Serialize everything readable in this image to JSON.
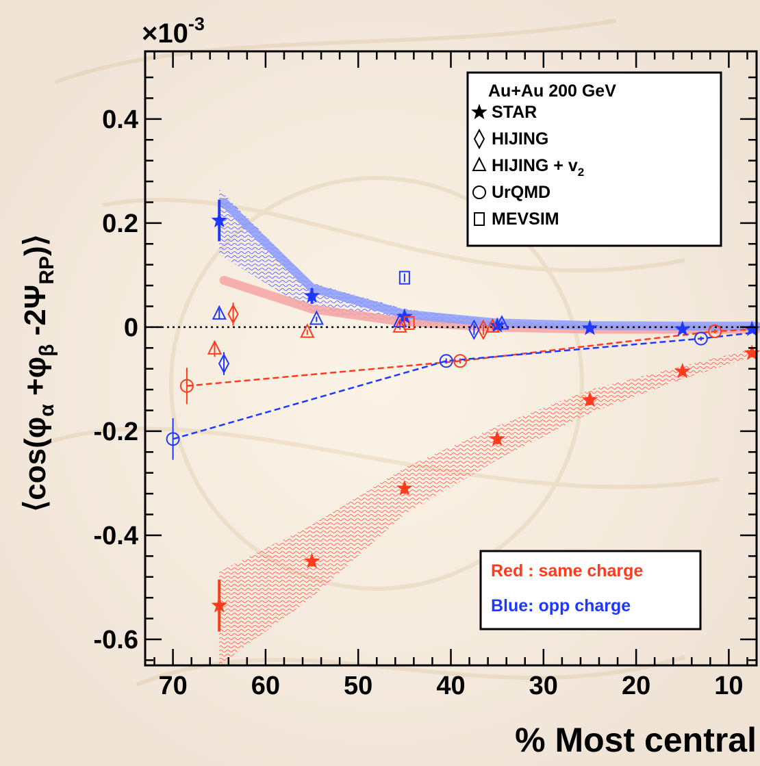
{
  "chart_data": {
    "type": "scatter",
    "multiplier_label": "×10",
    "multiplier_exponent": "-3",
    "xlabel": "% Most central",
    "ylabel": {
      "prefix": "⟨cos(φ",
      "sub_a": "α",
      "mid": " +φ",
      "sub_b": "β",
      "minus": " -2Ψ",
      "sub_rp": "RP",
      "suffix": ")⟩"
    },
    "xlim": [
      73,
      7
    ],
    "ylim": [
      -0.65,
      0.53
    ],
    "x_ticks": [
      70,
      60,
      50,
      40,
      30,
      20,
      10
    ],
    "y_ticks": [
      -0.6,
      -0.4,
      -0.2,
      0,
      0.2,
      0.4
    ],
    "y_tick_labels": [
      "-0.6",
      "-0.4",
      "-0.2",
      "0",
      "0.2",
      "0.4"
    ],
    "colors": {
      "red": "#ff3b1e",
      "blue": "#1f38ff",
      "red_band": "#f4a3a3",
      "blue_band": "#8d9cff"
    },
    "legend": {
      "header": "Au+Au 200 GeV",
      "entries": [
        {
          "label": "STAR",
          "symbol": "star"
        },
        {
          "label": "HIJING",
          "symbol": "diamond"
        },
        {
          "label": "HIJING + v",
          "sub": "2",
          "symbol": "triangle"
        },
        {
          "label": "UrQMD",
          "symbol": "circle"
        },
        {
          "label": "MEVSIM",
          "symbol": "square"
        }
      ]
    },
    "color_note": {
      "red_label": "Red : same charge",
      "blue_label": "Blue:  opp charge"
    },
    "series": [
      {
        "name": "STAR",
        "charge": "same",
        "marker": "star",
        "x": [
          65,
          55,
          45,
          35,
          25,
          15,
          7.5
        ],
        "y": [
          -0.535,
          -0.45,
          -0.31,
          -0.215,
          -0.14,
          -0.085,
          -0.05
        ],
        "err": [
          0.05,
          0.01,
          0.01,
          0.01,
          0.01,
          0.008,
          0.008
        ],
        "band_low": [
          -0.65,
          -0.52,
          -0.36,
          -0.255,
          -0.165,
          -0.1,
          -0.057
        ],
        "band_high": [
          -0.47,
          -0.38,
          -0.27,
          -0.19,
          -0.12,
          -0.075,
          -0.042
        ]
      },
      {
        "name": "STAR",
        "charge": "opp",
        "marker": "star",
        "x": [
          65,
          55,
          45,
          35,
          25,
          15,
          7.5
        ],
        "y": [
          0.205,
          0.06,
          0.02,
          0.003,
          -0.002,
          -0.004,
          -0.004
        ],
        "err": [
          0.04,
          0.015,
          0.008,
          0.006,
          0.006,
          0.005,
          0.005
        ],
        "band_low": [
          0.14,
          0.03,
          0.008,
          0.0,
          -0.004,
          -0.006,
          -0.006
        ],
        "band_high": [
          0.265,
          0.085,
          0.035,
          0.012,
          0.006,
          0.004,
          0.004
        ]
      },
      {
        "name": "HIJING",
        "charge": "same",
        "marker": "diamond",
        "x": [
          63.5,
          36.5
        ],
        "y": [
          0.025,
          -0.005
        ],
        "err": [
          0.022,
          0.01
        ]
      },
      {
        "name": "HIJING",
        "charge": "opp",
        "marker": "diamond",
        "x": [
          64.5,
          37.5
        ],
        "y": [
          -0.07,
          -0.005
        ],
        "err": [
          0.022,
          0.01
        ]
      },
      {
        "name": "HIJING + v2",
        "charge": "same",
        "marker": "triangle",
        "x": [
          65.5,
          55.5,
          45.5,
          35.5
        ],
        "y": [
          -0.042,
          -0.01,
          0.0,
          0.0
        ],
        "err": [
          0.015,
          0.005,
          0.005,
          0.005
        ]
      },
      {
        "name": "HIJING + v2",
        "charge": "opp",
        "marker": "triangle",
        "x": [
          65,
          54.5,
          45.5,
          34.5
        ],
        "y": [
          0.025,
          0.015,
          0.01,
          0.006
        ],
        "err": [
          0.01,
          0.005,
          0.005,
          0.005
        ]
      },
      {
        "name": "UrQMD",
        "charge": "same",
        "marker": "circle",
        "x": [
          68.5,
          39,
          11.5
        ],
        "y": [
          -0.113,
          -0.065,
          -0.008
        ],
        "err": [
          0.035,
          0.005,
          0.004
        ]
      },
      {
        "name": "UrQMD",
        "charge": "opp",
        "marker": "circle",
        "x": [
          70,
          40.5,
          13
        ],
        "y": [
          -0.215,
          -0.065,
          -0.022
        ],
        "err": [
          0.04,
          0.005,
          0.004
        ]
      },
      {
        "name": "MEVSIM",
        "charge": "same",
        "marker": "square",
        "x": [
          44.5
        ],
        "y": [
          0.008
        ],
        "err": [
          0.005
        ]
      },
      {
        "name": "MEVSIM",
        "charge": "opp",
        "marker": "square",
        "x": [
          45
        ],
        "y": [
          0.095
        ],
        "err": [
          0.008
        ]
      }
    ],
    "fit_lines": [
      {
        "charge": "same",
        "x": [
          68.5,
          39,
          11.5,
          7
        ],
        "y": [
          -0.113,
          -0.065,
          -0.008,
          -0.004
        ]
      },
      {
        "charge": "opp",
        "x": [
          70,
          40.5,
          13,
          7
        ],
        "y": [
          -0.215,
          -0.065,
          -0.022,
          -0.01
        ]
      }
    ],
    "model_bands": [
      {
        "charge": "same",
        "x": [
          64.5,
          55,
          45,
          35,
          25,
          15,
          7
        ],
        "y": [
          0.09,
          0.035,
          0.01,
          0.0,
          -0.004,
          -0.004,
          -0.004
        ]
      },
      {
        "charge": "opp",
        "x": [
          64.5,
          55,
          45,
          35,
          25,
          15,
          7
        ],
        "y": [
          0.24,
          0.075,
          0.025,
          0.008,
          0.003,
          0.002,
          0.002
        ]
      }
    ]
  }
}
